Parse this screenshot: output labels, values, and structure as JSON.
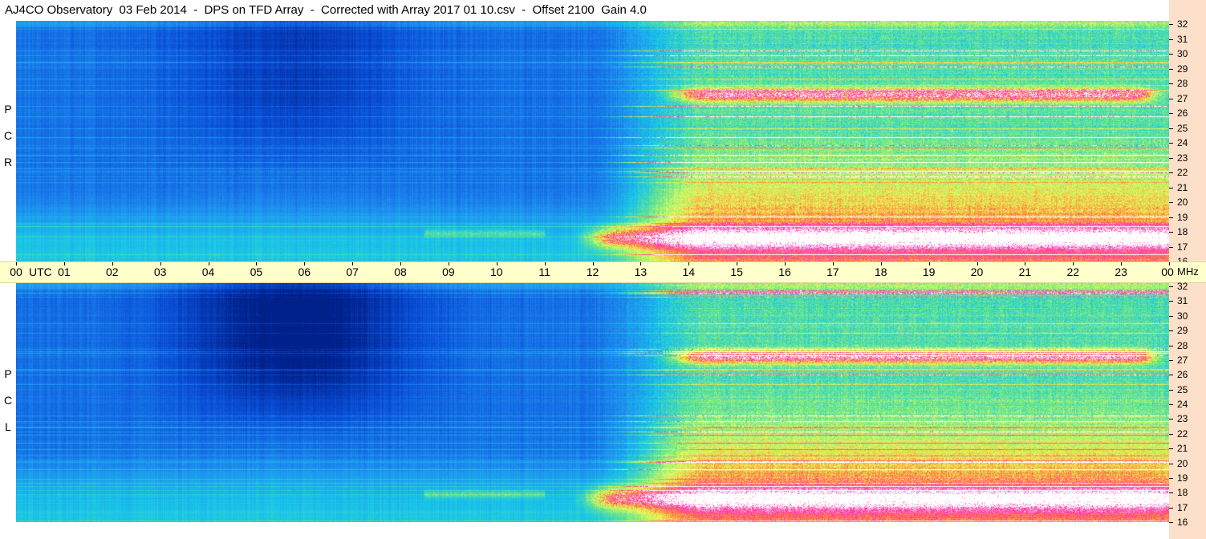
{
  "title": "AJ4CO Observatory  03 Feb 2014  -  DPS on TFD Array  -  Corrected with Array 2017 01 10.csv  -  Offset 2100  Gain 4.0",
  "chart_data": {
    "type": "heatmap",
    "title": "AJ4CO Observatory  03 Feb 2014  -  DPS on TFD Array  -  Corrected with Array 2017 01 10.csv  -  Offset 2100  Gain 4.0",
    "x_unit": "UTC",
    "y_unit": "MHz",
    "x_ticks": [
      "00",
      "01",
      "02",
      "03",
      "04",
      "05",
      "06",
      "07",
      "08",
      "09",
      "10",
      "11",
      "12",
      "13",
      "14",
      "15",
      "16",
      "17",
      "18",
      "19",
      "20",
      "21",
      "22",
      "23",
      "00"
    ],
    "y_ticks": [
      32,
      31,
      30,
      29,
      28,
      27,
      26,
      25,
      24,
      23,
      22,
      21,
      20,
      19,
      18,
      17,
      16
    ],
    "ylim": [
      16,
      32
    ],
    "xlim": [
      0,
      24
    ],
    "panels": [
      {
        "name": "RCP",
        "label_letters": [
          "R",
          "C",
          "P"
        ]
      },
      {
        "name": "LCP",
        "label_letters": [
          "L",
          "C",
          "P"
        ]
      }
    ],
    "colormap": [
      "#00208a",
      "#0a4fd8",
      "#1f8df0",
      "#19c8e8",
      "#6de68a",
      "#e8ff5a",
      "#ff8a3a",
      "#ff2fb4",
      "#ffffff"
    ]
  }
}
